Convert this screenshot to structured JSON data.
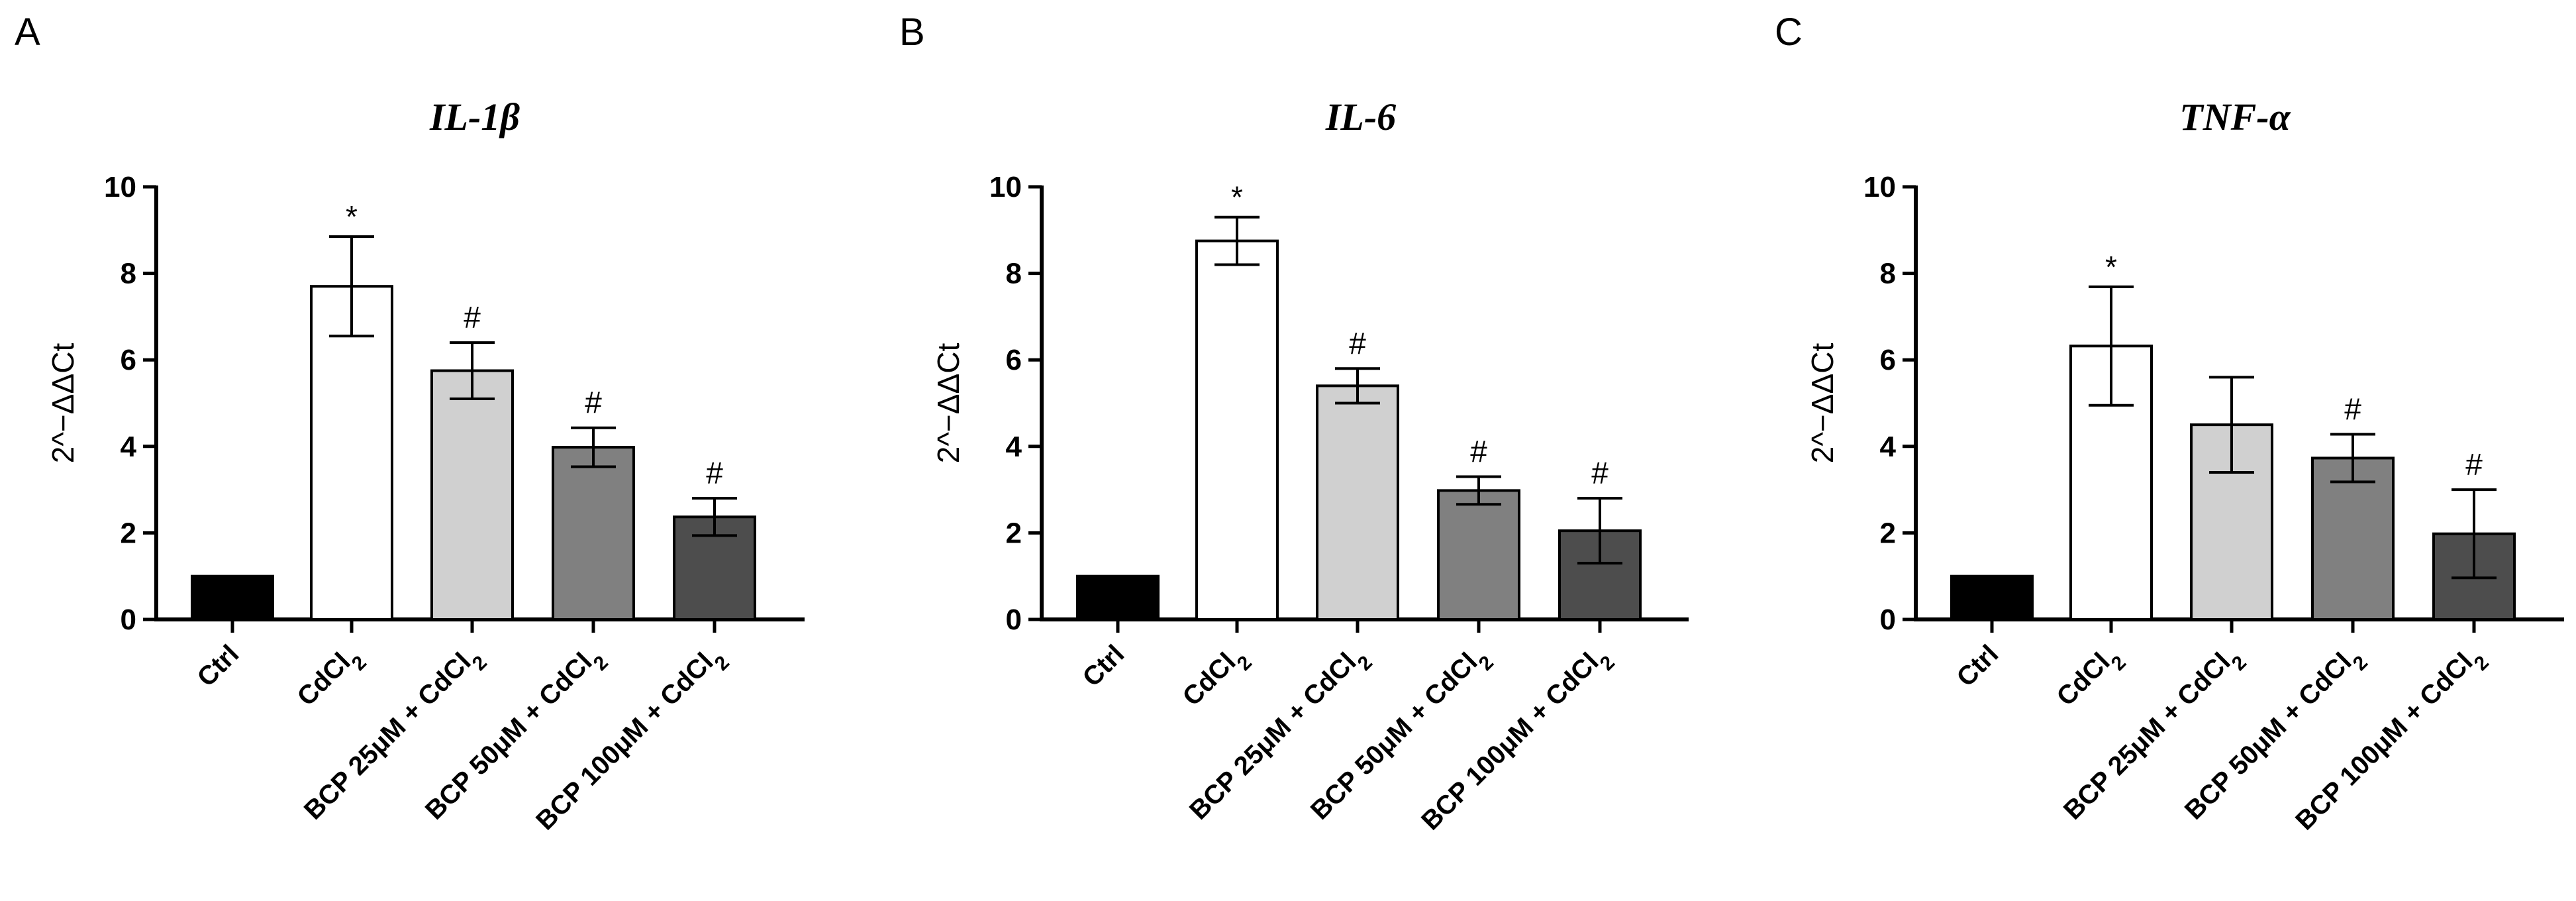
{
  "chart_data": [
    {
      "type": "bar",
      "panel": "A",
      "title": "IL-1β",
      "ylabel": "2^−ΔΔCt",
      "ylim": [
        0,
        10
      ],
      "yticks": [
        0,
        2,
        4,
        6,
        8,
        10
      ],
      "categories": [
        "Ctrl",
        "CdCl2",
        "BCP 25μM + CdCl2",
        "BCP 50μM + CdCl2",
        "BCP 100μM + CdCl2"
      ],
      "values": [
        1.0,
        7.7,
        5.75,
        3.98,
        2.37
      ],
      "errors": [
        0,
        1.15,
        0.65,
        0.45,
        0.43
      ],
      "significance": [
        "",
        "*",
        "#",
        "#",
        "#"
      ],
      "colors": [
        "#000000",
        "#ffffff",
        "#d0d0d0",
        "#808080",
        "#4d4d4d"
      ]
    },
    {
      "type": "bar",
      "panel": "B",
      "title": "IL-6",
      "ylabel": "2^−ΔΔCt",
      "ylim": [
        0,
        10
      ],
      "yticks": [
        0,
        2,
        4,
        6,
        8,
        10
      ],
      "categories": [
        "Ctrl",
        "CdCl2",
        "BCP 25μM + CdCl2",
        "BCP 50μM + CdCl2",
        "BCP 100μM + CdCl2"
      ],
      "values": [
        1.0,
        8.75,
        5.4,
        2.98,
        2.05
      ],
      "errors": [
        0,
        0.55,
        0.4,
        0.32,
        0.75
      ],
      "significance": [
        "",
        "*",
        "#",
        "#",
        "#"
      ],
      "colors": [
        "#000000",
        "#ffffff",
        "#d0d0d0",
        "#808080",
        "#4d4d4d"
      ]
    },
    {
      "type": "bar",
      "panel": "C",
      "title": "TNF-α",
      "ylabel": "2^−ΔΔCt",
      "ylim": [
        0,
        10
      ],
      "yticks": [
        0,
        2,
        4,
        6,
        8,
        10
      ],
      "categories": [
        "Ctrl",
        "CdCl2",
        "BCP 25μM + CdCl2",
        "BCP 50μM + CdCl2",
        "BCP 100μM + CdCl2"
      ],
      "values": [
        1.0,
        6.32,
        4.5,
        3.73,
        1.98
      ],
      "errors": [
        0,
        1.37,
        1.1,
        0.55,
        1.02
      ],
      "significance": [
        "",
        "*",
        "",
        "#",
        "#"
      ],
      "colors": [
        "#000000",
        "#ffffff",
        "#d0d0d0",
        "#808080",
        "#4d4d4d"
      ]
    }
  ]
}
